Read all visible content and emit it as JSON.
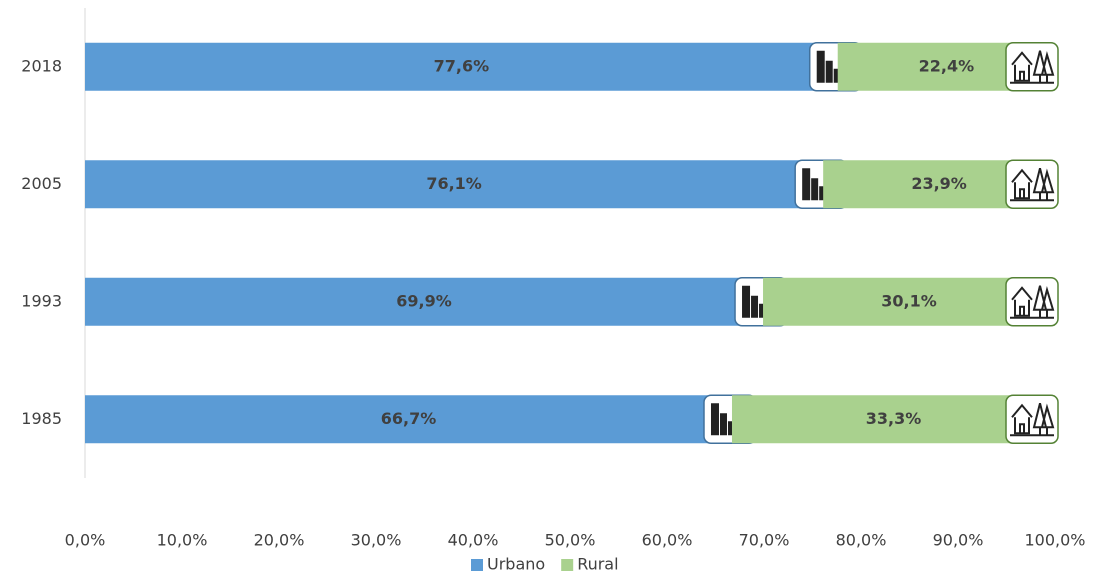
{
  "chart_data": {
    "type": "stacked-barh",
    "categories": [
      "2018",
      "2005",
      "1993",
      "1985"
    ],
    "series": [
      {
        "name": "Urbano",
        "color": "#5b9bd5",
        "values": [
          77.6,
          76.1,
          69.9,
          66.7
        ],
        "value_labels": [
          "77,6%",
          "76,1%",
          "69,9%",
          "66,7%"
        ]
      },
      {
        "name": "Rural",
        "color": "#a9d18e",
        "values": [
          22.4,
          23.9,
          30.1,
          33.3
        ],
        "value_labels": [
          "22,4%",
          "23,9%",
          "30,1%",
          "33,3%"
        ]
      }
    ],
    "xlim": [
      0,
      100
    ],
    "xticks": [
      {
        "value": 0,
        "label": "0,0%"
      },
      {
        "value": 10,
        "label": "10,0%"
      },
      {
        "value": 20,
        "label": "20,0%"
      },
      {
        "value": 30,
        "label": "30,0%"
      },
      {
        "value": 40,
        "label": "40,0%"
      },
      {
        "value": 50,
        "label": "50,0%"
      },
      {
        "value": 60,
        "label": "60,0%"
      },
      {
        "value": 70,
        "label": "70,0%"
      },
      {
        "value": 80,
        "label": "80,0%"
      },
      {
        "value": 90,
        "label": "90,0%"
      },
      {
        "value": 100,
        "label": "100,0%"
      }
    ],
    "legend": "bottom"
  }
}
